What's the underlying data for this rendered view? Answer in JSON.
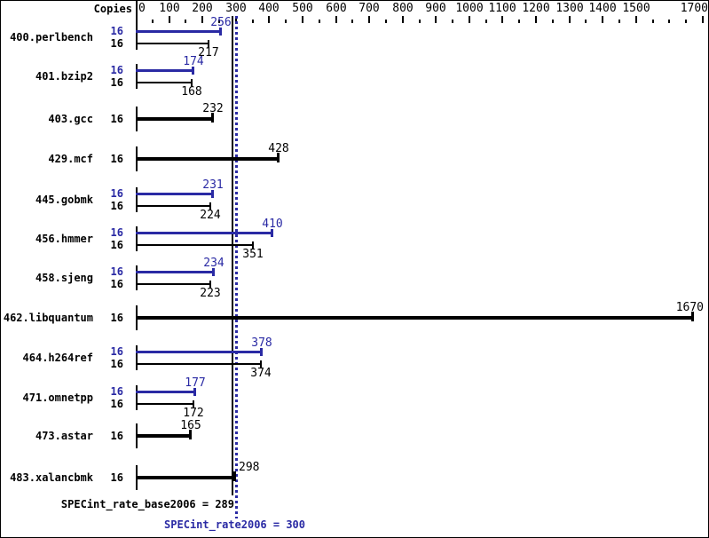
{
  "header": {
    "copies_label": "Copies"
  },
  "chart_data": {
    "type": "bar",
    "orientation": "horizontal",
    "title": "",
    "xlabel": "",
    "ylabel": "",
    "axis": {
      "min": 0,
      "max": 1700,
      "minor_tick_step": 50,
      "major_tick_step": 100,
      "labeled_ticks": [
        0,
        100,
        200,
        300,
        400,
        500,
        600,
        700,
        800,
        900,
        1000,
        1100,
        1200,
        1300,
        1400,
        1500,
        1700
      ]
    },
    "colors": {
      "peak": "#2a2aa4",
      "base": "#000000"
    },
    "benchmarks": [
      {
        "name": "400.perlbench",
        "bars": [
          {
            "series": "peak",
            "copies": "16",
            "value": 256
          },
          {
            "series": "base",
            "copies": "16",
            "value": 217
          }
        ]
      },
      {
        "name": "401.bzip2",
        "bars": [
          {
            "series": "peak",
            "copies": "16",
            "value": 174
          },
          {
            "series": "base",
            "copies": "16",
            "value": 168
          }
        ]
      },
      {
        "name": "403.gcc",
        "bars": [
          {
            "series": "base",
            "copies": "16",
            "value": 232
          }
        ]
      },
      {
        "name": "429.mcf",
        "bars": [
          {
            "series": "base",
            "copies": "16",
            "value": 428
          }
        ]
      },
      {
        "name": "445.gobmk",
        "bars": [
          {
            "series": "peak",
            "copies": "16",
            "value": 231
          },
          {
            "series": "base",
            "copies": "16",
            "value": 224
          }
        ]
      },
      {
        "name": "456.hmmer",
        "bars": [
          {
            "series": "peak",
            "copies": "16",
            "value": 410
          },
          {
            "series": "base",
            "copies": "16",
            "value": 351
          }
        ]
      },
      {
        "name": "458.sjeng",
        "bars": [
          {
            "series": "peak",
            "copies": "16",
            "value": 234
          },
          {
            "series": "base",
            "copies": "16",
            "value": 223
          }
        ]
      },
      {
        "name": "462.libquantum",
        "bars": [
          {
            "series": "base",
            "copies": "16",
            "value": 1670
          }
        ]
      },
      {
        "name": "464.h264ref",
        "bars": [
          {
            "series": "peak",
            "copies": "16",
            "value": 378
          },
          {
            "series": "base",
            "copies": "16",
            "value": 374
          }
        ]
      },
      {
        "name": "471.omnetpp",
        "bars": [
          {
            "series": "peak",
            "copies": "16",
            "value": 177
          },
          {
            "series": "base",
            "copies": "16",
            "value": 172
          }
        ]
      },
      {
        "name": "473.astar",
        "bars": [
          {
            "series": "base",
            "copies": "16",
            "value": 165
          }
        ]
      },
      {
        "name": "483.xalancbmk",
        "bars": [
          {
            "series": "base",
            "copies": "16",
            "value": 298
          }
        ]
      }
    ],
    "reference_lines": [
      {
        "value": 289,
        "series": "base",
        "style": "solid"
      },
      {
        "value": 300,
        "series": "peak",
        "style": "dotted"
      }
    ],
    "summary": [
      {
        "label": "SPECint_rate_base2006",
        "value": 289,
        "series": "base",
        "text": "SPECint_rate_base2006 = 289"
      },
      {
        "label": "SPECint_rate2006",
        "value": 300,
        "series": "peak",
        "text": "SPECint_rate2006 = 300"
      }
    ]
  }
}
